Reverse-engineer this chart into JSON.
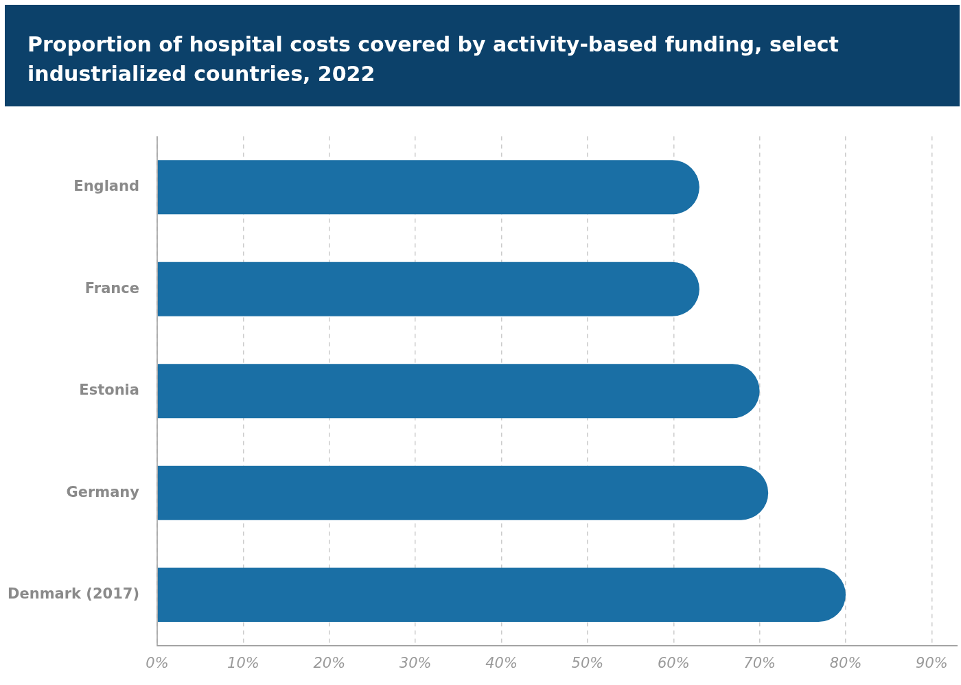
{
  "chart_data": {
    "type": "bar",
    "orientation": "horizontal",
    "title": "Proportion of hospital costs covered by activity-based funding, select industrialized countries, 2022",
    "categories": [
      "England",
      "France",
      "Estonia",
      "Germany",
      "Denmark (2017)"
    ],
    "values": [
      63,
      63,
      70,
      71,
      80
    ],
    "color": "#1a6fa5",
    "xlim": [
      0,
      93
    ],
    "xticks": [
      {
        "value": 0,
        "label": "0%"
      },
      {
        "value": 10,
        "label": "10%"
      },
      {
        "value": 20,
        "label": "20%"
      },
      {
        "value": 30,
        "label": "30%"
      },
      {
        "value": 40,
        "label": "40%"
      },
      {
        "value": 50,
        "label": "50%"
      },
      {
        "value": 60,
        "label": "60%"
      },
      {
        "value": 70,
        "label": "70%"
      },
      {
        "value": 80,
        "label": "80%"
      },
      {
        "value": 90,
        "label": "90%"
      }
    ],
    "grid": "x",
    "legend": false
  }
}
